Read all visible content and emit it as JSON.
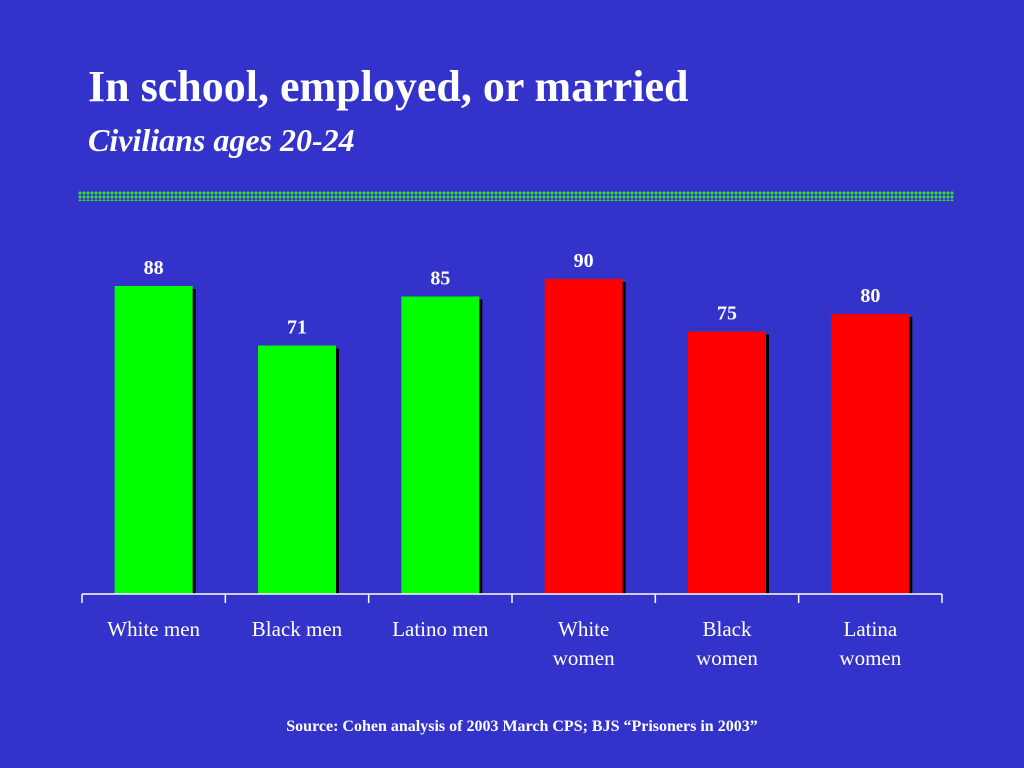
{
  "slide": {
    "title": "In school, employed, or married",
    "subtitle": "Civilians ages 20-24",
    "source": "Source: Cohen analysis of 2003 March CPS; BJS “Prisoners in 2003”",
    "background_color": "#3333cc",
    "rule_color": "#33dd33"
  },
  "chart_data": {
    "type": "bar",
    "categories": [
      [
        "White men"
      ],
      [
        "Black men"
      ],
      [
        "Latino men"
      ],
      [
        "White",
        "women"
      ],
      [
        "Black",
        "women"
      ],
      [
        "Latina",
        "women"
      ]
    ],
    "values": [
      88,
      71,
      85,
      90,
      75,
      80
    ],
    "bar_colors": [
      "#00ff00",
      "#00ff00",
      "#00ff00",
      "#ff0000",
      "#ff0000",
      "#ff0000"
    ],
    "data_labels": [
      "88",
      "71",
      "85",
      "90",
      "75",
      "80"
    ],
    "title": "",
    "xlabel": "",
    "ylabel": "",
    "ylim": [
      0,
      100
    ],
    "grid": false,
    "legend": "none"
  }
}
